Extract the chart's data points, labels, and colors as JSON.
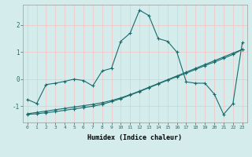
{
  "xlabel": "Humidex (Indice chaleur)",
  "x_values": [
    0,
    1,
    2,
    3,
    4,
    5,
    6,
    7,
    8,
    9,
    10,
    11,
    12,
    13,
    14,
    15,
    16,
    17,
    18,
    19,
    20,
    21,
    22,
    23
  ],
  "line1": [
    -0.75,
    -0.9,
    -0.2,
    -0.15,
    -0.08,
    0.0,
    -0.05,
    -0.25,
    0.3,
    0.4,
    1.4,
    1.7,
    2.55,
    2.35,
    1.5,
    1.4,
    1.0,
    -0.1,
    -0.15,
    -0.15,
    -0.55,
    -1.3,
    -0.9,
    1.35
  ],
  "line2": [
    -1.3,
    -1.28,
    -1.24,
    -1.2,
    -1.15,
    -1.1,
    -1.05,
    -1.0,
    -0.93,
    -0.83,
    -0.72,
    -0.59,
    -0.46,
    -0.32,
    -0.18,
    -0.04,
    0.09,
    0.22,
    0.36,
    0.5,
    0.63,
    0.77,
    0.91,
    1.1
  ],
  "line3": [
    -1.28,
    -1.23,
    -1.18,
    -1.13,
    -1.08,
    -1.03,
    -0.98,
    -0.93,
    -0.87,
    -0.79,
    -0.69,
    -0.57,
    -0.44,
    -0.3,
    -0.16,
    -0.02,
    0.12,
    0.26,
    0.4,
    0.54,
    0.68,
    0.82,
    0.96,
    1.1
  ],
  "bg_color": "#d4edec",
  "line_color": "#1a6b6b",
  "grid_color": "#f0c8c8",
  "ylim": [
    -1.6,
    2.75
  ],
  "yticks": [
    -1,
    0,
    1,
    2
  ],
  "xlim": [
    -0.5,
    23.5
  ]
}
